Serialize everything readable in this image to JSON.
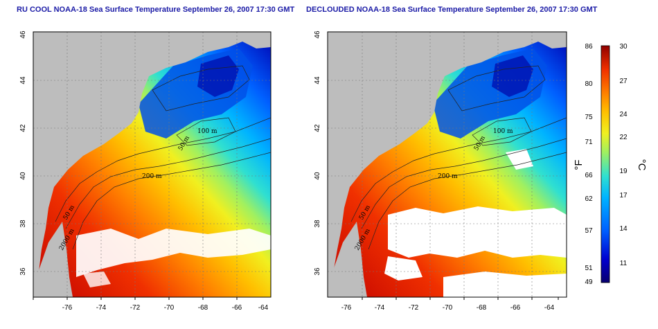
{
  "panels": [
    {
      "title": "RU COOL NOAA-18 Sea Surface Temperature September 26, 2007 17:30 GMT",
      "x_ticks": [
        "-76",
        "-74",
        "-72",
        "-70",
        "-68",
        "-66",
        "-64"
      ],
      "y_ticks": [
        "36",
        "38",
        "40",
        "42",
        "44",
        "46"
      ],
      "contour_labels": [
        "100 m",
        "50 m",
        "200 m",
        "50 m",
        "2000 m"
      ]
    },
    {
      "title": "DECLOUDED NOAA-18 Sea Surface Temperature September 26, 2007 17:30 GMT",
      "x_ticks": [
        "-76",
        "-74",
        "-72",
        "-70",
        "-68",
        "-66",
        "-64"
      ],
      "y_ticks": [
        "36",
        "38",
        "40",
        "42",
        "44",
        "46"
      ],
      "contour_labels": [
        "100 m",
        "50 m",
        "200 m",
        "50 m",
        "2000 m"
      ]
    }
  ],
  "colorbar": {
    "fahrenheit_ticks": [
      "86",
      "80",
      "75",
      "71",
      "66",
      "62",
      "57",
      "51",
      "49"
    ],
    "celsius_ticks": [
      "30",
      "27",
      "24",
      "22",
      "19",
      "17",
      "14",
      "11"
    ],
    "fahrenheit_unit": "°F",
    "celsius_unit": "°C"
  },
  "colors": {
    "land": "#bdbdbd",
    "cloud": "#ffffff",
    "title": "#1a1aa6",
    "scale": [
      "#08006e",
      "#0000d0",
      "#0060ff",
      "#00b4ff",
      "#30e0d0",
      "#a0f060",
      "#f0f020",
      "#ffc000",
      "#ff8000",
      "#f03000",
      "#c00000",
      "#900000"
    ]
  }
}
